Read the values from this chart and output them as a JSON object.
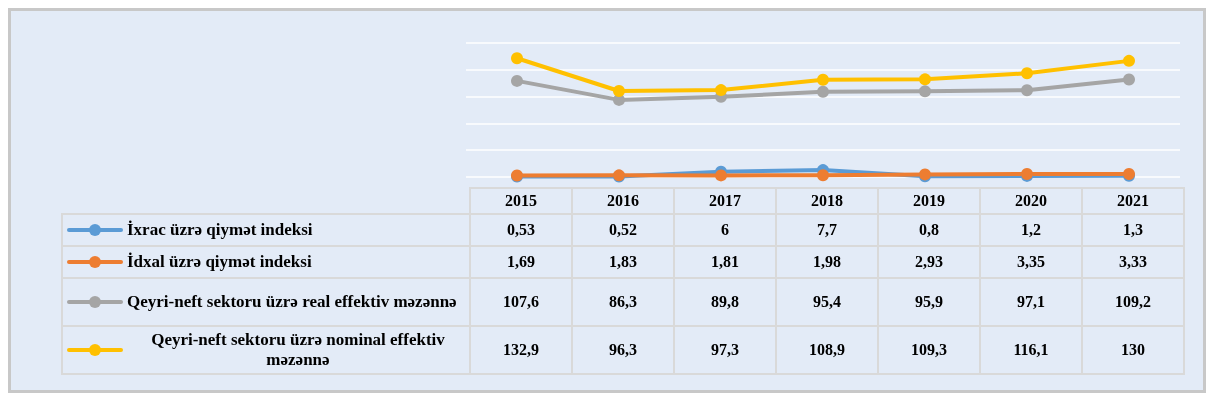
{
  "chart_data": {
    "type": "line",
    "categories": [
      "2015",
      "2016",
      "2017",
      "2018",
      "2019",
      "2020",
      "2021"
    ],
    "series": [
      {
        "name": "İxrac üzrə qiymət indeksi",
        "color": "#5b9bd5",
        "values": [
          0.53,
          0.52,
          6,
          7.7,
          0.8,
          1.2,
          1.3
        ],
        "value_labels": [
          "0,53",
          "0,52",
          "6",
          "7,7",
          "0,8",
          "1,2",
          "1,3"
        ]
      },
      {
        "name": "İdxal üzrə qiymət indeksi",
        "color": "#ed7d31",
        "values": [
          1.69,
          1.83,
          1.81,
          1.98,
          2.93,
          3.35,
          3.33
        ],
        "value_labels": [
          "1,69",
          "1,83",
          "1,81",
          "1,98",
          "2,93",
          "3,35",
          "3,33"
        ]
      },
      {
        "name": "Qeyri-neft sektoru üzrə  real effektiv məzənnə",
        "color": "#a5a5a5",
        "values": [
          107.6,
          86.3,
          89.8,
          95.4,
          95.9,
          97.1,
          109.2
        ],
        "value_labels": [
          "107,6",
          "86,3",
          "89,8",
          "95,4",
          "95,9",
          "97,1",
          "109,2"
        ]
      },
      {
        "name": "Qeyri-neft sektoru üzrə  nominal effektiv məzənnə",
        "color": "#ffc000",
        "values": [
          132.9,
          96.3,
          97.3,
          108.9,
          109.3,
          116.1,
          130
        ],
        "value_labels": [
          "132,9",
          "96,3",
          "97,3",
          "108,9",
          "109,3",
          "116,1",
          "130"
        ]
      }
    ],
    "grid": "y",
    "marker": "circle",
    "line_style": "solid",
    "tick_labels": "x",
    "legend": "left"
  }
}
